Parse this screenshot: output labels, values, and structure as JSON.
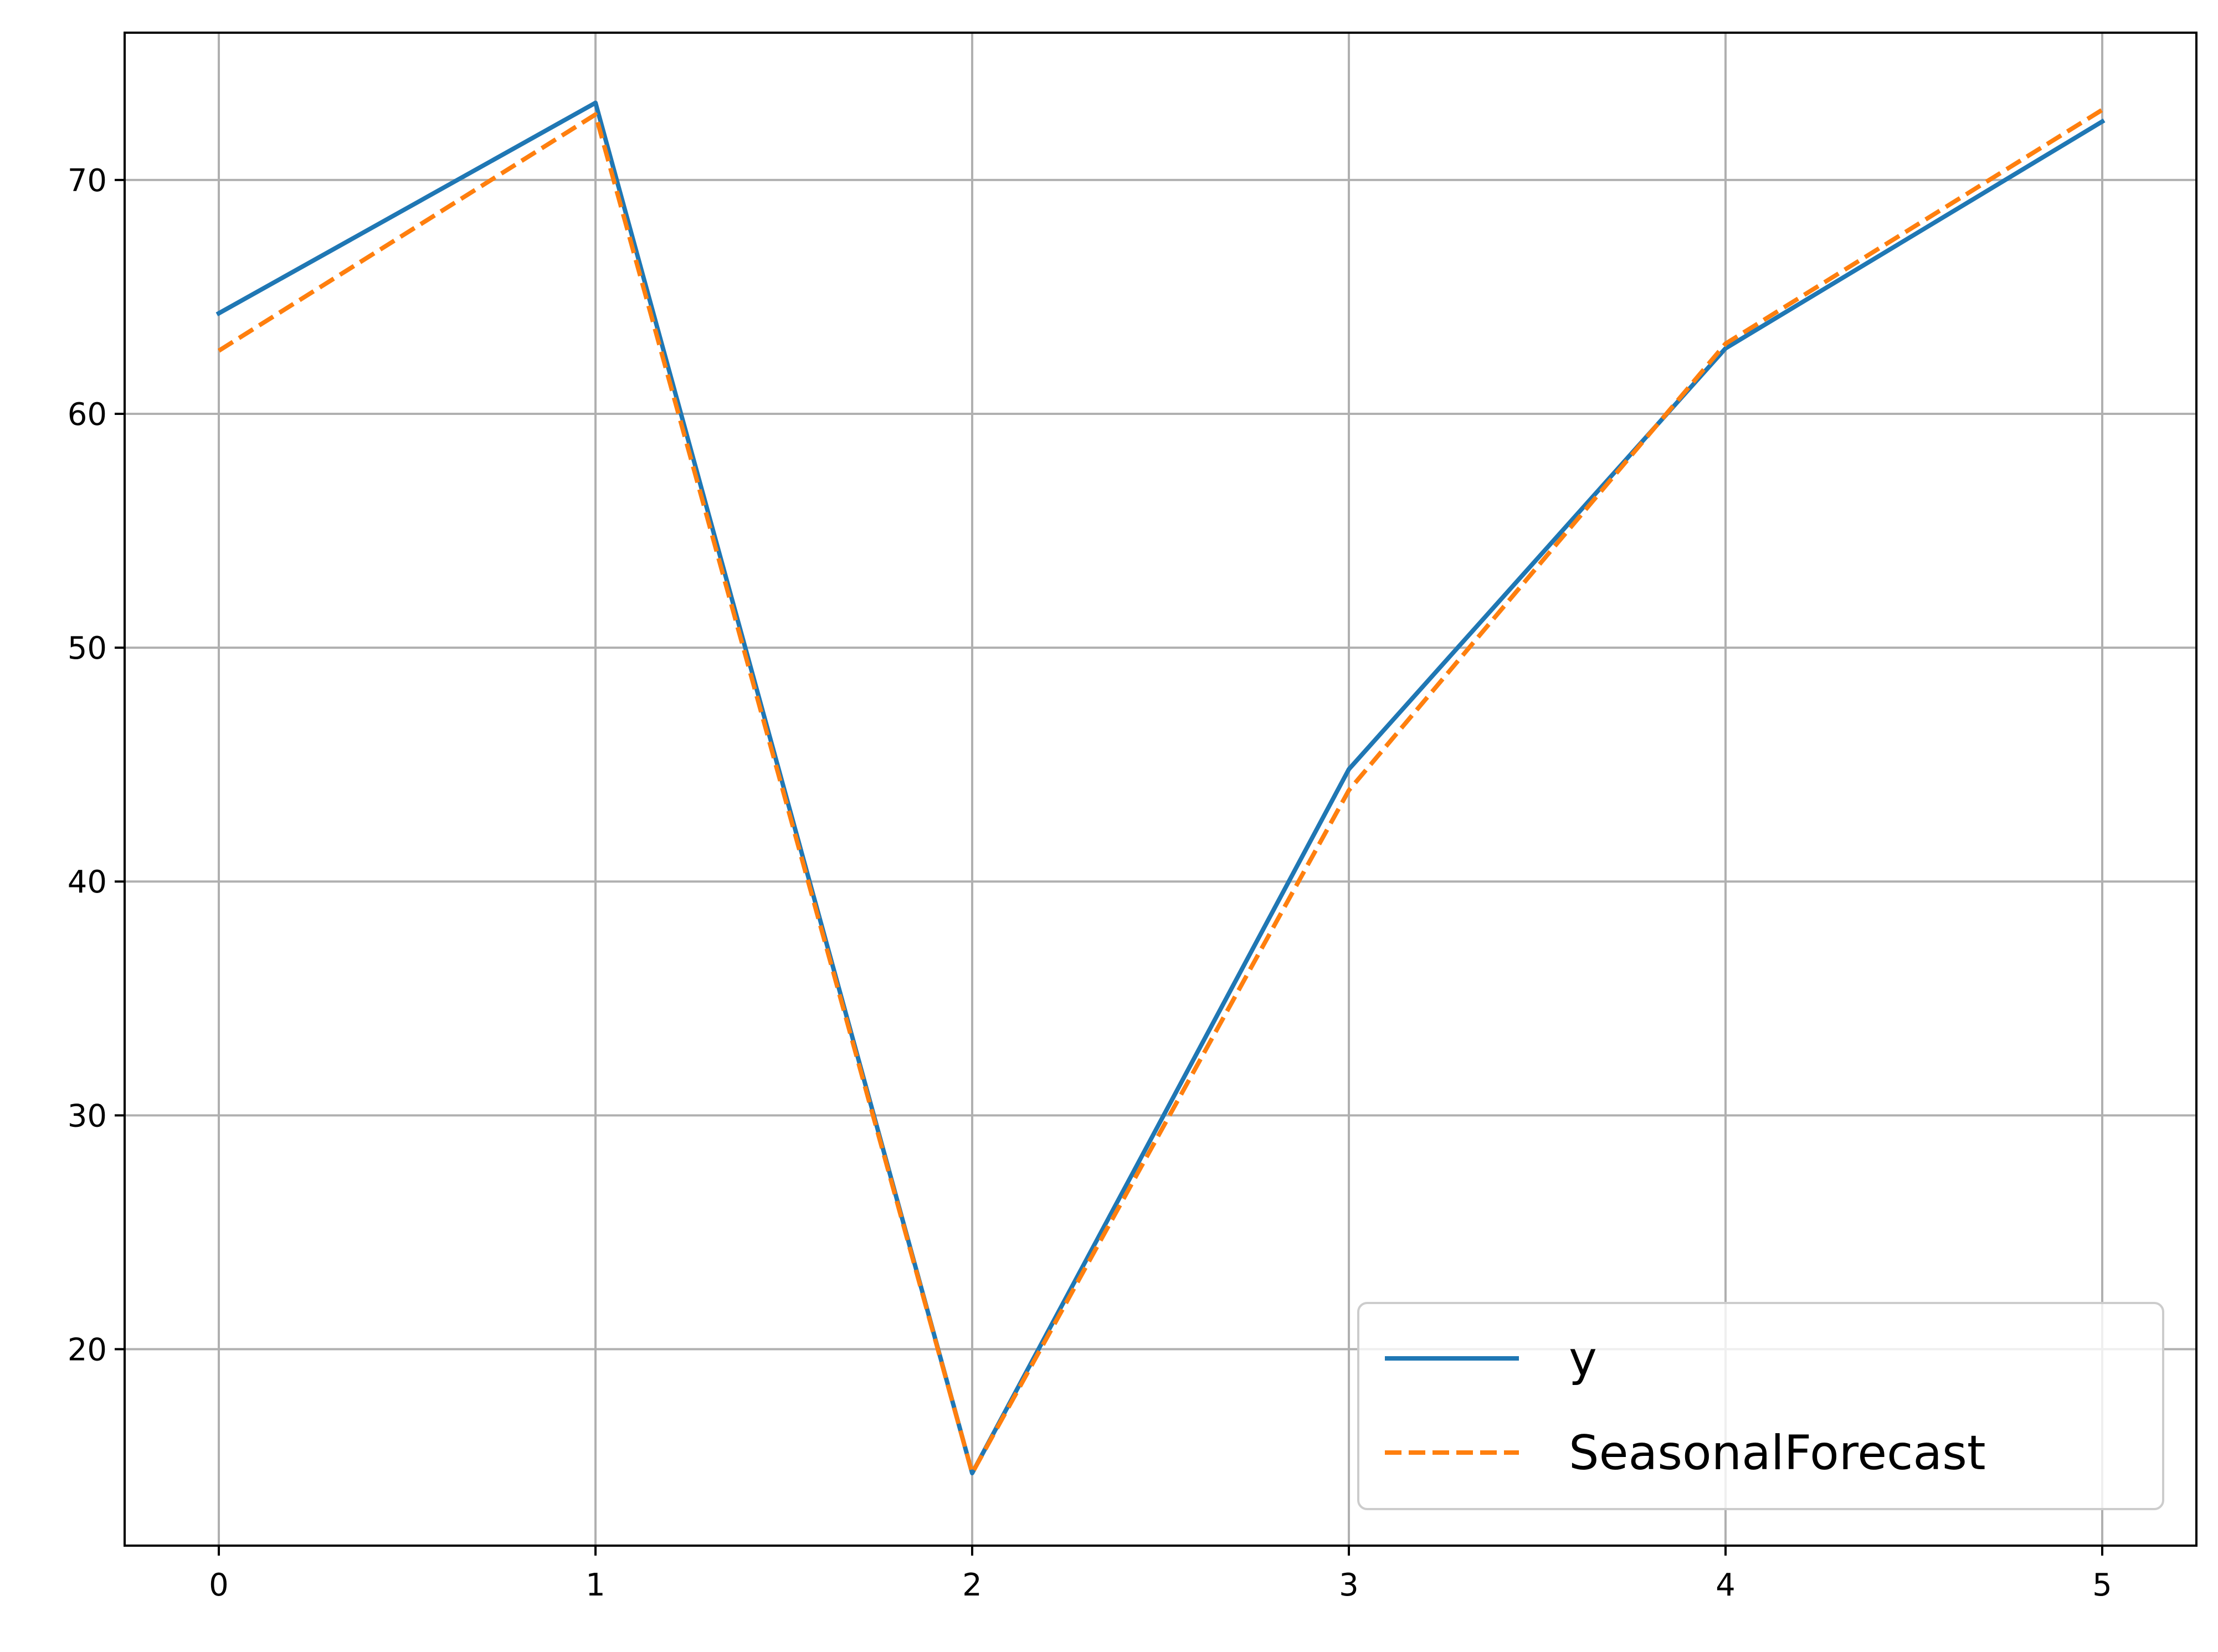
{
  "chart_data": {
    "type": "line",
    "title": "",
    "xlabel": "",
    "ylabel": "",
    "x": [
      0,
      1,
      2,
      3,
      4,
      5
    ],
    "xlim": [
      -0.25,
      5.25
    ],
    "ylim": [
      11.6,
      76.3
    ],
    "xticks": [
      "0",
      "1",
      "2",
      "3",
      "4",
      "5"
    ],
    "yticks": [
      "20",
      "30",
      "40",
      "50",
      "60",
      "70"
    ],
    "grid": true,
    "legend_position": "lower-right",
    "series": [
      {
        "name": "y",
        "values": [
          64.3,
          73.3,
          14.7,
          44.8,
          62.8,
          72.5
        ],
        "color": "#1f77b4",
        "style": "solid"
      },
      {
        "name": "SeasonalForecast",
        "values": [
          62.7,
          72.8,
          14.7,
          43.9,
          63.0,
          73.0
        ],
        "color": "#ff7f0e",
        "style": "dashed"
      }
    ]
  }
}
